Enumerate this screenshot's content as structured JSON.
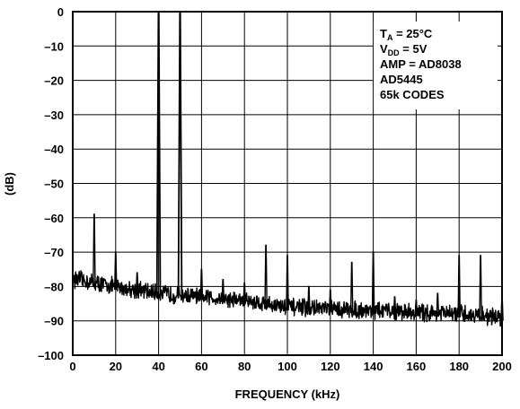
{
  "chart_data": {
    "type": "line",
    "title": "",
    "xlabel": "FREQUENCY (kHz)",
    "ylabel": "(dB)",
    "xlim": [
      0,
      200
    ],
    "ylim": [
      -100,
      0
    ],
    "x_ticks": [
      0,
      20,
      40,
      60,
      80,
      100,
      120,
      140,
      160,
      180,
      200
    ],
    "y_ticks": [
      0,
      -10,
      -20,
      -30,
      -40,
      -50,
      -60,
      -70,
      -80,
      -90,
      -100
    ],
    "x_tick_labels": [
      "0",
      "20",
      "40",
      "60",
      "80",
      "100",
      "120",
      "140",
      "160",
      "180",
      "200"
    ],
    "y_tick_labels": [
      "0",
      "–10",
      "–20",
      "–30",
      "–40",
      "–50",
      "–60",
      "–70",
      "–80",
      "–90",
      "–100"
    ],
    "grid": true,
    "noise_floor": {
      "x": [
        2,
        20,
        40,
        60,
        80,
        100,
        120,
        140,
        160,
        180,
        200
      ],
      "y": [
        -78,
        -80,
        -82,
        -83,
        -84,
        -86,
        -86.5,
        -87,
        -87.5,
        -88,
        -89
      ]
    },
    "peaks": {
      "x": [
        10,
        20,
        30,
        40,
        50,
        60,
        70,
        80,
        90,
        100,
        110,
        120,
        130,
        140,
        150,
        160,
        170,
        180,
        190,
        200
      ],
      "y": [
        -59,
        -70,
        -76,
        0,
        0,
        -75,
        -78,
        -79,
        -68,
        -71,
        -80,
        -81,
        -73,
        -70,
        -83,
        -84,
        -82,
        -71,
        -71,
        -83
      ]
    },
    "annotation": {
      "lines": [
        {
          "main": "T",
          "sub": "A",
          "rest": " = 25°C"
        },
        {
          "main": "V",
          "sub": "DD",
          "rest": " = 5V"
        },
        {
          "main": "AMP = AD8038",
          "sub": "",
          "rest": ""
        },
        {
          "main": "AD5445",
          "sub": "",
          "rest": ""
        },
        {
          "main": "65k CODES",
          "sub": "",
          "rest": ""
        }
      ]
    }
  }
}
